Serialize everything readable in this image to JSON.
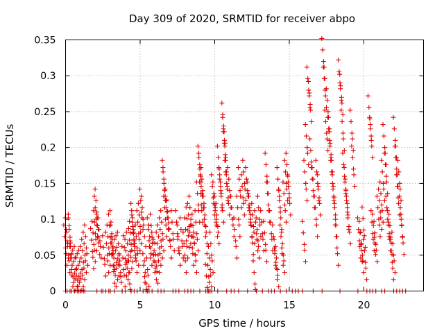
{
  "chart_data": {
    "type": "scatter",
    "title": "Day 309 of 2020, SRMTID for receiver abpo",
    "xlabel": "GPS time / hours",
    "ylabel": "SRMTID / TECUs",
    "xlim": [
      0,
      24
    ],
    "ylim": [
      0,
      0.35
    ],
    "xticks": [
      0,
      5,
      10,
      15,
      20
    ],
    "xtick_labels": [
      "0",
      "5",
      "10",
      "15",
      "20"
    ],
    "yticks": [
      0,
      0.05,
      0.1,
      0.15,
      0.2,
      0.25,
      0.3,
      0.35
    ],
    "ytick_labels": [
      "0",
      "0.05",
      "0.1",
      "0.15",
      "0.2",
      "0.25",
      "0.3",
      "0.35"
    ],
    "grid": true,
    "marker": "+",
    "marker_color": "#e00000",
    "series": [
      {
        "name": "SRMTID",
        "points": [
          [
            0.0,
            0.06
          ],
          [
            0.1,
            0.07
          ],
          [
            0.2,
            0.05
          ],
          [
            0.3,
            0.075
          ],
          [
            0.3,
            0.07
          ],
          [
            0.4,
            0.03
          ],
          [
            0.5,
            0.02
          ],
          [
            0.6,
            0.025
          ],
          [
            0.7,
            0.03
          ],
          [
            0.8,
            0.015
          ],
          [
            0.9,
            0.02
          ],
          [
            1.0,
            0.025
          ],
          [
            1.1,
            0.03
          ],
          [
            1.2,
            0.04
          ],
          [
            1.3,
            0.05
          ],
          [
            1.4,
            0.06
          ],
          [
            1.8,
            0.055
          ],
          [
            1.9,
            0.065
          ],
          [
            2.0,
            0.08
          ],
          [
            2.05,
            0.1
          ],
          [
            2.1,
            0.11
          ],
          [
            2.2,
            0.075
          ],
          [
            2.3,
            0.07
          ],
          [
            2.6,
            0.045
          ],
          [
            2.8,
            0.05
          ],
          [
            2.9,
            0.06
          ],
          [
            3.0,
            0.075
          ],
          [
            3.1,
            0.08
          ],
          [
            3.15,
            0.06
          ],
          [
            3.2,
            0.035
          ],
          [
            3.3,
            0.03
          ],
          [
            3.4,
            0.04
          ],
          [
            3.5,
            0.045
          ],
          [
            3.6,
            0.05
          ],
          [
            3.7,
            0.02
          ],
          [
            3.9,
            0.03
          ],
          [
            4.0,
            0.045
          ],
          [
            4.1,
            0.04
          ],
          [
            4.2,
            0.05
          ],
          [
            4.3,
            0.01
          ],
          [
            4.35,
            0.055
          ],
          [
            4.4,
            0.065
          ],
          [
            4.5,
            0.09
          ],
          [
            4.55,
            0.08
          ],
          [
            4.6,
            0.07
          ],
          [
            4.7,
            0.05
          ],
          [
            4.8,
            0.06
          ],
          [
            4.9,
            0.08
          ],
          [
            5.0,
            0.09
          ],
          [
            5.1,
            0.11
          ],
          [
            5.2,
            0.1
          ],
          [
            5.3,
            0.02
          ],
          [
            5.4,
            0.01
          ],
          [
            5.5,
            0.03
          ],
          [
            5.6,
            0.07
          ],
          [
            5.7,
            0.06
          ],
          [
            5.8,
            0.075
          ],
          [
            5.9,
            0.05
          ],
          [
            6.0,
            0.04
          ],
          [
            6.1,
            0.035
          ],
          [
            6.2,
            0.05
          ],
          [
            6.3,
            0.06
          ],
          [
            6.4,
            0.07
          ],
          [
            6.5,
            0.08
          ],
          [
            6.6,
            0.15
          ],
          [
            6.65,
            0.14
          ],
          [
            6.7,
            0.1
          ],
          [
            6.8,
            0.11
          ],
          [
            6.9,
            0.095
          ],
          [
            7.0,
            0.07
          ],
          [
            7.2,
            0.08
          ],
          [
            7.5,
            0.08
          ],
          [
            7.6,
            0.06
          ],
          [
            7.8,
            0.07
          ],
          [
            8.0,
            0.05
          ],
          [
            8.1,
            0.07
          ],
          [
            8.2,
            0.085
          ],
          [
            8.3,
            0.09
          ],
          [
            8.4,
            0.1
          ],
          [
            8.5,
            0.06
          ],
          [
            8.6,
            0.075
          ],
          [
            8.7,
            0.05
          ],
          [
            8.8,
            0.08
          ],
          [
            8.9,
            0.12
          ],
          [
            9.0,
            0.17
          ],
          [
            9.05,
            0.16
          ],
          [
            9.1,
            0.12
          ],
          [
            9.2,
            0.14
          ],
          [
            9.3,
            0.1
          ],
          [
            9.4,
            0.09
          ],
          [
            9.5,
            0.005
          ],
          [
            9.6,
            0.02
          ],
          [
            9.7,
            0.03
          ],
          [
            9.8,
            0.05
          ],
          [
            9.9,
            0.13
          ],
          [
            10.0,
            0.12
          ],
          [
            10.1,
            0.1
          ],
          [
            10.2,
            0.09
          ],
          [
            10.3,
            0.17
          ],
          [
            10.4,
            0.14
          ],
          [
            10.5,
            0.12
          ],
          [
            10.6,
            0.23
          ],
          [
            10.65,
            0.21
          ],
          [
            10.7,
            0.19
          ],
          [
            10.8,
            0.15
          ],
          [
            10.9,
            0.13
          ],
          [
            11.0,
            0.14
          ],
          [
            11.2,
            0.1
          ],
          [
            11.4,
            0.07
          ],
          [
            11.6,
            0.1
          ],
          [
            11.7,
            0.14
          ],
          [
            11.9,
            0.13
          ],
          [
            12.0,
            0.15
          ],
          [
            12.2,
            0.14
          ],
          [
            12.3,
            0.12
          ],
          [
            12.4,
            0.1
          ],
          [
            12.5,
            0.075
          ],
          [
            12.6,
            0.09
          ],
          [
            12.7,
            0.01
          ],
          [
            12.8,
            0.08
          ],
          [
            12.9,
            0.07
          ],
          [
            13.0,
            0.1
          ],
          [
            13.2,
            0.08
          ],
          [
            13.4,
            0.065
          ],
          [
            13.5,
            0.16
          ],
          [
            13.6,
            0.12
          ],
          [
            13.8,
            0.08
          ],
          [
            14.0,
            0.06
          ],
          [
            14.1,
            0.04
          ],
          [
            14.2,
            0.03
          ],
          [
            14.3,
            0.14
          ],
          [
            14.4,
            0.11
          ],
          [
            14.5,
            0.06
          ],
          [
            14.6,
            0.05
          ],
          [
            14.7,
            0.12
          ],
          [
            14.8,
            0.15
          ],
          [
            14.9,
            0.16
          ],
          [
            15.0,
            0.13
          ],
          [
            16.0,
            0.065
          ],
          [
            16.1,
            0.15
          ],
          [
            16.2,
            0.2
          ],
          [
            16.3,
            0.28
          ],
          [
            16.4,
            0.26
          ],
          [
            16.5,
            0.18
          ],
          [
            16.6,
            0.14
          ],
          [
            16.8,
            0.1
          ],
          [
            16.9,
            0.15
          ],
          [
            17.0,
            0.13
          ],
          [
            17.3,
            0.32
          ],
          [
            17.4,
            0.28
          ],
          [
            17.5,
            0.22
          ],
          [
            17.6,
            0.25
          ],
          [
            17.7,
            0.21
          ],
          [
            17.8,
            0.19
          ],
          [
            17.9,
            0.15
          ],
          [
            18.0,
            0.13
          ],
          [
            18.1,
            0.1
          ],
          [
            18.2,
            0.06
          ],
          [
            18.4,
            0.29
          ],
          [
            18.5,
            0.27
          ],
          [
            18.6,
            0.22
          ],
          [
            18.7,
            0.16
          ],
          [
            18.8,
            0.14
          ],
          [
            18.9,
            0.11
          ],
          [
            19.0,
            0.09
          ],
          [
            19.2,
            0.22
          ],
          [
            19.3,
            0.17
          ],
          [
            19.7,
            0.07
          ],
          [
            19.8,
            0.065
          ],
          [
            19.9,
            0.05
          ],
          [
            20.0,
            0.085
          ],
          [
            20.1,
            0.04
          ],
          [
            20.4,
            0.24
          ],
          [
            20.5,
            0.21
          ],
          [
            20.6,
            0.08
          ],
          [
            20.7,
            0.075
          ],
          [
            20.8,
            0.065
          ],
          [
            21.0,
            0.1
          ],
          [
            21.1,
            0.11
          ],
          [
            21.2,
            0.12
          ],
          [
            21.3,
            0.15
          ],
          [
            21.4,
            0.2
          ],
          [
            21.5,
            0.16
          ],
          [
            21.6,
            0.1
          ],
          [
            21.7,
            0.08
          ],
          [
            21.8,
            0.075
          ],
          [
            21.9,
            0.04
          ],
          [
            22.0,
            0.05
          ],
          [
            22.1,
            0.21
          ],
          [
            22.2,
            0.17
          ],
          [
            22.3,
            0.13
          ],
          [
            22.4,
            0.15
          ],
          [
            22.5,
            0.1
          ],
          [
            22.6,
            0.075
          ]
        ],
        "zero_points_x": [
          0.0,
          0.1,
          0.3,
          0.4,
          0.6,
          0.8,
          1.0,
          1.2,
          1.3,
          2.1,
          2.4,
          2.5,
          2.7,
          2.9,
          3.0,
          3.3,
          3.8,
          4.0,
          4.4,
          4.6,
          4.8,
          5.2,
          5.6,
          5.8,
          6.2,
          6.4,
          6.6,
          7.2,
          7.4,
          7.6,
          8.0,
          8.2,
          8.4,
          8.6,
          9.0,
          9.4,
          9.8,
          10.2,
          10.8,
          11.1,
          11.3,
          11.6,
          12.2,
          12.8,
          13.2,
          13.6,
          13.8,
          14.0,
          14.4,
          14.8,
          15.2,
          15.4,
          15.6,
          15.9,
          16.6,
          17.2,
          18.4,
          19.6,
          20.2,
          20.4,
          20.6,
          20.8,
          21.2,
          21.4,
          22.0,
          22.2,
          22.4,
          22.6,
          22.8
        ]
      }
    ]
  }
}
